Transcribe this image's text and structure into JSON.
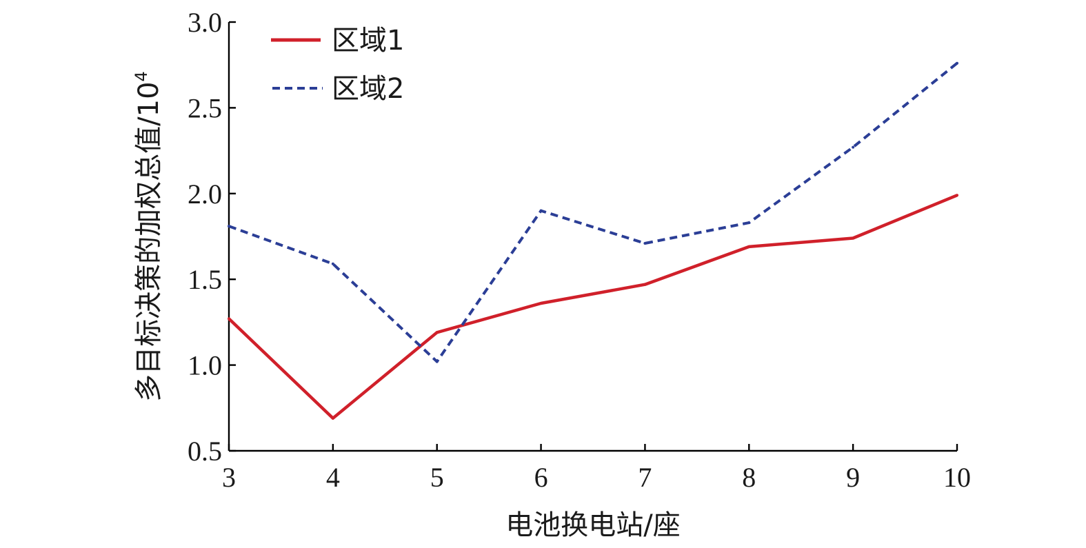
{
  "chart_data": {
    "type": "line",
    "xlabel": "电池换电站/座",
    "ylabel": "多目标决策的加权总值/10",
    "ylabel_superscript": "4",
    "xlim": [
      3,
      10
    ],
    "ylim": [
      0.5,
      3.0
    ],
    "x_ticks": [
      "3",
      "4",
      "5",
      "6",
      "7",
      "8",
      "9",
      "10"
    ],
    "y_ticks": [
      "0.5",
      "1.0",
      "1.5",
      "2.0",
      "2.5",
      "3.0"
    ],
    "grid": false,
    "legend_position": "top-left",
    "x": [
      3,
      4,
      5,
      6,
      7,
      8,
      9,
      10
    ],
    "series": [
      {
        "name": "区域1",
        "values": [
          1.27,
          0.69,
          1.19,
          1.36,
          1.47,
          1.69,
          1.74,
          1.99
        ],
        "color": "#d0202a",
        "style": "solid"
      },
      {
        "name": "区域2",
        "values": [
          1.81,
          1.59,
          1.02,
          1.9,
          1.71,
          1.83,
          2.27,
          2.76
        ],
        "color": "#2b3e96",
        "style": "dashed"
      }
    ]
  }
}
